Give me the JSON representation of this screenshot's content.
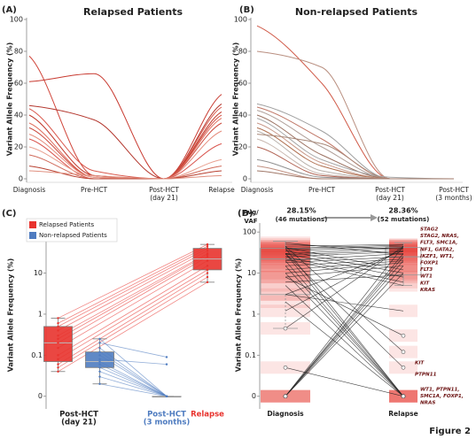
{
  "footer": "Figure 2",
  "chart_data": [
    {
      "type": "line",
      "label": "(A)",
      "title": "Relapsed Patients",
      "ylabel": "Variant Allele Frequency (%)",
      "categories": [
        "Diagnosis",
        "Pre-HCT",
        [
          "Post-HCT",
          "(day 21)"
        ],
        "Relapse"
      ],
      "ylim": [
        0,
        100
      ],
      "yticks": [
        0,
        20,
        40,
        60,
        80,
        100
      ],
      "series": [
        {
          "color": "#d0453a",
          "values": [
            77,
            2,
            0,
            40
          ]
        },
        {
          "color": "#c83a30",
          "values": [
            61,
            66,
            0,
            53
          ]
        },
        {
          "color": "#b3362d",
          "values": [
            46,
            37,
            0,
            47
          ]
        },
        {
          "color": "#d95a4e",
          "values": [
            44,
            5,
            0,
            45
          ]
        },
        {
          "color": "#c0392b",
          "values": [
            40,
            2,
            0,
            42
          ]
        },
        {
          "color": "#e07060",
          "values": [
            35,
            1,
            0,
            38
          ]
        },
        {
          "color": "#cc4a3e",
          "values": [
            32,
            1,
            0,
            35
          ]
        },
        {
          "color": "#e58a7a",
          "values": [
            28,
            1,
            0,
            30
          ]
        },
        {
          "color": "#d9544d",
          "values": [
            25,
            0,
            0,
            22
          ]
        },
        {
          "color": "#e8a090",
          "values": [
            20,
            1,
            0,
            12
          ]
        },
        {
          "color": "#d06a5a",
          "values": [
            15,
            0,
            0,
            8
          ]
        },
        {
          "color": "#b84030",
          "values": [
            8,
            0,
            0,
            5
          ]
        },
        {
          "color": "#e09080",
          "values": [
            5,
            2,
            0,
            2
          ]
        }
      ]
    },
    {
      "type": "line",
      "label": "(B)",
      "title": "Non-relapsed Patients",
      "ylabel": "Variant Allele Frequency (%)",
      "categories": [
        "Diagnosis",
        "Pre-HCT",
        [
          "Post-HCT",
          "(day 21)"
        ],
        [
          "Post-HCT",
          "(3 months)"
        ]
      ],
      "ylim": [
        0,
        100
      ],
      "yticks": [
        0,
        20,
        40,
        60,
        80,
        100
      ],
      "series": [
        {
          "color": "#d05a48",
          "values": [
            96,
            60,
            0,
            0
          ]
        },
        {
          "color": "#b98f80",
          "values": [
            80,
            70,
            0,
            0
          ]
        },
        {
          "color": "#a0a0a0",
          "values": [
            47,
            30,
            0,
            0
          ]
        },
        {
          "color": "#c07868",
          "values": [
            45,
            25,
            0,
            0
          ]
        },
        {
          "color": "#b0a09a",
          "values": [
            43,
            20,
            0,
            0
          ]
        },
        {
          "color": "#9a7060",
          "values": [
            40,
            15,
            0,
            0
          ]
        },
        {
          "color": "#a8a8a8",
          "values": [
            38,
            12,
            1,
            0
          ]
        },
        {
          "color": "#c89888",
          "values": [
            35,
            10,
            0,
            0
          ]
        },
        {
          "color": "#b07050",
          "values": [
            32,
            8,
            0,
            0
          ]
        },
        {
          "color": "#b8b0aa",
          "values": [
            30,
            5,
            0,
            0
          ]
        },
        {
          "color": "#a88878",
          "values": [
            28,
            22,
            0,
            0
          ]
        },
        {
          "color": "#c8b8b0",
          "values": [
            25,
            3,
            0,
            0
          ]
        },
        {
          "color": "#b06050",
          "values": [
            20,
            2,
            0,
            0
          ]
        },
        {
          "color": "#909090",
          "values": [
            12,
            1,
            0,
            0
          ]
        },
        {
          "color": "#c09080",
          "values": [
            8,
            0,
            0,
            0
          ]
        },
        {
          "color": "#a07868",
          "values": [
            5,
            0,
            0,
            0
          ]
        }
      ]
    },
    {
      "type": "box",
      "label": "(C)",
      "ylabel": "Variant Allele Frequency (%)",
      "log_scale": true,
      "categories": [
        [
          "Post-HCT",
          "(day 21)"
        ],
        [
          "Post-HCT",
          "(3 months)"
        ],
        "Relapse"
      ],
      "category_colors": [
        "#222222",
        "#4f7cc0",
        "#e8332e"
      ],
      "ylim": [
        0.006,
        150
      ],
      "yticks": [
        100,
        10,
        1,
        0.1,
        0
      ],
      "series": [
        {
          "name": "Relapsed Patients",
          "color": "#e8332e",
          "boxes": [
            {
              "min": 0.04,
              "q1": 0.07,
              "median": 0.2,
              "q3": 0.5,
              "max": 0.8
            },
            null,
            {
              "min": 6,
              "q1": 12,
              "median": 22,
              "q3": 40,
              "max": 50
            }
          ],
          "lines": [
            [
              0.8,
              null,
              50
            ],
            [
              0.6,
              null,
              45
            ],
            [
              0.5,
              null,
              40
            ],
            [
              0.4,
              null,
              35
            ],
            [
              0.3,
              null,
              30
            ],
            [
              0.25,
              null,
              28
            ],
            [
              0.2,
              null,
              25
            ],
            [
              0.15,
              null,
              20
            ],
            [
              0.1,
              null,
              15
            ],
            [
              0.08,
              null,
              12
            ],
            [
              0.06,
              null,
              10
            ],
            [
              0.05,
              null,
              8
            ],
            [
              0.04,
              null,
              6
            ]
          ]
        },
        {
          "name": "Non-relapsed Patients",
          "color": "#4f7cc0",
          "boxes": [
            {
              "min": 0.02,
              "q1": 0.05,
              "median": 0.07,
              "q3": 0.12,
              "max": 0.25
            },
            {
              "min": 0,
              "q1": 0,
              "median": 0,
              "q3": 0,
              "max": 0
            },
            null
          ],
          "lines": [
            [
              0.25,
              0,
              null
            ],
            [
              0.2,
              0.09,
              null
            ],
            [
              0.15,
              0,
              null
            ],
            [
              0.12,
              0,
              null
            ],
            [
              0.1,
              0,
              null
            ],
            [
              0.08,
              0.06,
              null
            ],
            [
              0.07,
              0,
              null
            ],
            [
              0.06,
              0,
              null
            ],
            [
              0.05,
              0,
              null
            ],
            [
              0.04,
              0,
              null
            ],
            [
              0.03,
              0,
              null
            ],
            [
              0.02,
              0,
              null
            ]
          ]
        }
      ]
    },
    {
      "type": "slope",
      "label": "(D)",
      "ylabel": "Variant Allele Frequency (%)",
      "log_scale": true,
      "categories": [
        "Diagnosis",
        "Relapse"
      ],
      "color": "#222222",
      "heat_color": "#e8332e",
      "ylim": [
        0.006,
        150
      ],
      "yticks": [
        100,
        10,
        1,
        0.1,
        0
      ],
      "stat_label": [
        "Avg/",
        "VAF"
      ],
      "stats": [
        [
          "28.15%",
          "(46 mutations)"
        ],
        [
          "28.36%",
          "(52 mutations)"
        ]
      ],
      "boxes": [
        {
          "min": 0.45,
          "q1": 3,
          "median": 22,
          "q3": 40,
          "max": 60
        },
        {
          "min": 5,
          "q1": 9,
          "median": 25,
          "q3": 42,
          "max": 55
        }
      ],
      "lines": [
        [
          45,
          50
        ],
        [
          40,
          48
        ],
        [
          38,
          45
        ],
        [
          35,
          42
        ],
        [
          30,
          40
        ],
        [
          50,
          38
        ],
        [
          28,
          35
        ],
        [
          25,
          33
        ],
        [
          20,
          30
        ],
        [
          55,
          28
        ],
        [
          18,
          25
        ],
        [
          15,
          22
        ],
        [
          12,
          20
        ],
        [
          10,
          18
        ],
        [
          8,
          15
        ],
        [
          42,
          12
        ],
        [
          35,
          10
        ],
        [
          6,
          9
        ],
        [
          30,
          8
        ],
        [
          25,
          6
        ],
        [
          22,
          5
        ],
        [
          0.45,
          45
        ],
        [
          1.2,
          40
        ],
        [
          3,
          35
        ],
        [
          0,
          30
        ],
        [
          0,
          25
        ],
        [
          0,
          20
        ],
        [
          0,
          15
        ],
        [
          0,
          10
        ],
        [
          0,
          45
        ],
        [
          40,
          0
        ],
        [
          30,
          0
        ],
        [
          20,
          0
        ],
        [
          15,
          0
        ],
        [
          10,
          0
        ],
        [
          5,
          0
        ],
        [
          2,
          0
        ],
        [
          0.05,
          0
        ],
        [
          45,
          0.12
        ],
        [
          30,
          0.05
        ],
        [
          8,
          0.3
        ],
        [
          3,
          1.2
        ]
      ],
      "gene_labels": [
        "STAG2",
        "STAG2, NRAS,",
        "FLT3, SMC1A,",
        "NF1, GATA2,",
        "IKZF1, WT1,",
        "FOXP1",
        "FLT3",
        "WT1",
        "KIT",
        "KRAS"
      ],
      "gene_labels_low": [
        "KIT",
        "PTPN11"
      ],
      "gene_labels_zero": [
        "WT1, PTPN11,",
        "SMC1A, FOXP1,",
        "NRAS"
      ]
    }
  ]
}
